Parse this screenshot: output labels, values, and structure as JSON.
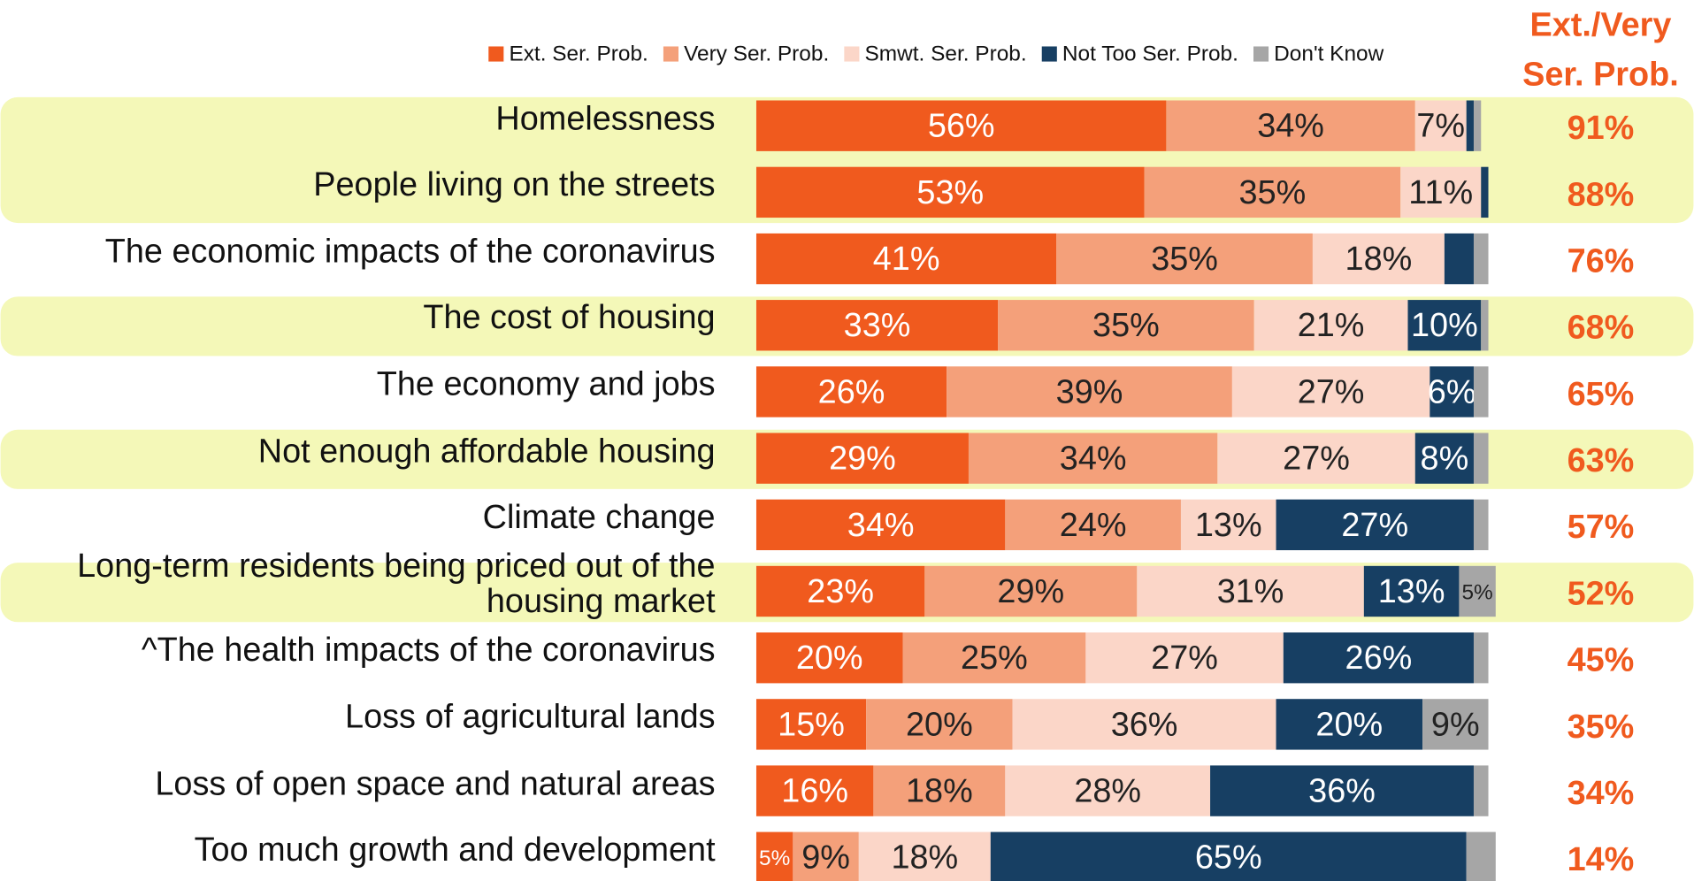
{
  "chart_data": {
    "type": "stacked-barh",
    "categories": [
      "Homelessness",
      "People living on the streets",
      "The economic impacts of the coronavirus",
      "The cost of housing",
      "The economy and jobs",
      "Not enough affordable housing",
      "Climate change",
      "Long-term residents being priced out of the housing market",
      "^The health impacts of the coronavirus",
      "Loss of agricultural lands",
      "Loss of open space and natural areas",
      "Too much growth and development"
    ],
    "highlighted": [
      true,
      true,
      false,
      true,
      false,
      true,
      false,
      true,
      false,
      false,
      false,
      false
    ],
    "xlim": [
      0,
      100
    ],
    "series": [
      {
        "name": "Ext. Ser. Prob.",
        "color": "#f05a1e",
        "values": [
          56,
          53,
          41,
          33,
          26,
          29,
          34,
          23,
          20,
          15,
          16,
          5
        ],
        "value_labels": [
          "56%",
          "53%",
          "41%",
          "33%",
          "26%",
          "29%",
          "34%",
          "23%",
          "20%",
          "15%",
          "16%",
          "5%"
        ]
      },
      {
        "name": "Very Ser. Prob.",
        "color": "#f4a07a",
        "values": [
          34,
          35,
          35,
          35,
          39,
          34,
          24,
          29,
          25,
          20,
          18,
          9
        ],
        "value_labels": [
          "34%",
          "35%",
          "35%",
          "35%",
          "39%",
          "34%",
          "24%",
          "29%",
          "25%",
          "20%",
          "18%",
          "9%"
        ]
      },
      {
        "name": "Smwt. Ser. Prob.",
        "color": "#fbd6c8",
        "values": [
          7,
          11,
          18,
          21,
          27,
          27,
          13,
          31,
          27,
          36,
          28,
          18
        ],
        "value_labels": [
          "7%",
          "11%",
          "18%",
          "21%",
          "27%",
          "27%",
          "13%",
          "31%",
          "27%",
          "36%",
          "28%",
          "18%"
        ]
      },
      {
        "name": "Not Too Ser. Prob.",
        "color": "#173f63",
        "values": [
          1,
          1,
          4,
          10,
          6,
          8,
          27,
          13,
          26,
          20,
          36,
          65
        ],
        "value_labels": [
          null,
          null,
          null,
          "10%",
          "6%",
          "8%",
          "27%",
          "13%",
          "26%",
          "20%",
          "36%",
          "65%"
        ]
      },
      {
        "name": "Don't Know",
        "color": "#a6a6a6",
        "values": [
          1,
          0,
          2,
          1,
          2,
          2,
          2,
          5,
          2,
          9,
          2,
          4
        ],
        "value_labels": [
          null,
          null,
          null,
          null,
          null,
          null,
          null,
          "5%",
          null,
          "9%",
          null,
          null
        ]
      }
    ],
    "net_header": [
      "Ext./Very",
      "Ser. Prob."
    ],
    "net_color": "#f05a1e",
    "net_values": [
      91,
      88,
      76,
      68,
      65,
      63,
      57,
      52,
      45,
      35,
      34,
      14
    ],
    "net_labels": [
      "91%",
      "88%",
      "76%",
      "68%",
      "65%",
      "63%",
      "57%",
      "52%",
      "45%",
      "35%",
      "34%",
      "14%"
    ]
  }
}
